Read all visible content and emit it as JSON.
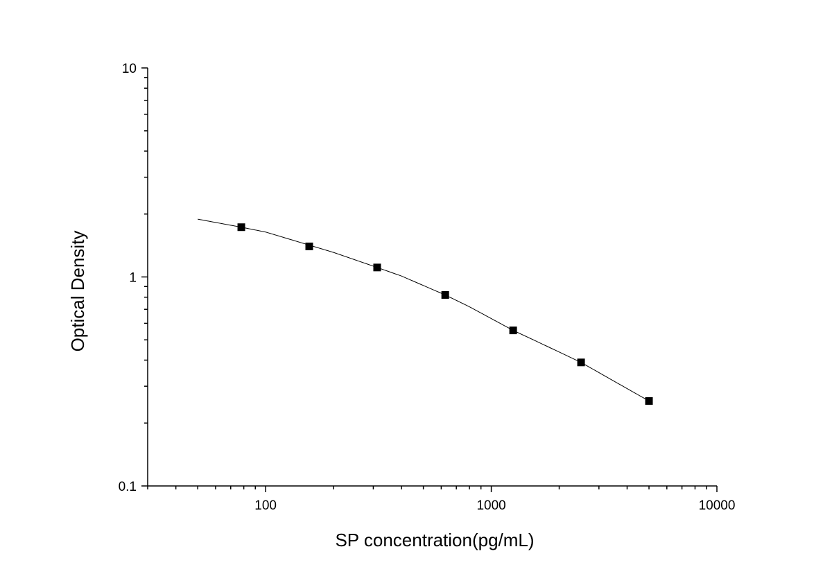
{
  "chart_data": {
    "type": "scatter",
    "xlabel": "SP concentration(pg/mL)",
    "ylabel": "Optical Density",
    "x_scale": "log",
    "y_scale": "log",
    "xlim": [
      30,
      10000
    ],
    "ylim": [
      0.1,
      10
    ],
    "x_ticks": [
      "100",
      "1000",
      "10000"
    ],
    "y_ticks": [
      "0.1",
      "1",
      "10"
    ],
    "grid": false,
    "points": [
      {
        "x": 78,
        "y": 1.73
      },
      {
        "x": 156,
        "y": 1.4
      },
      {
        "x": 312,
        "y": 1.11
      },
      {
        "x": 625,
        "y": 0.82
      },
      {
        "x": 1250,
        "y": 0.555
      },
      {
        "x": 2500,
        "y": 0.39
      },
      {
        "x": 5000,
        "y": 0.255
      }
    ],
    "fit_curve": {
      "x": [
        50,
        78,
        100,
        156,
        200,
        312,
        400,
        625,
        800,
        1250,
        1600,
        2500,
        3200,
        5000
      ],
      "y": [
        1.89,
        1.73,
        1.64,
        1.42,
        1.31,
        1.11,
        1.01,
        0.82,
        0.72,
        0.555,
        0.49,
        0.39,
        0.335,
        0.255
      ]
    },
    "marker_color": "#000000",
    "line_color": "#000000"
  }
}
